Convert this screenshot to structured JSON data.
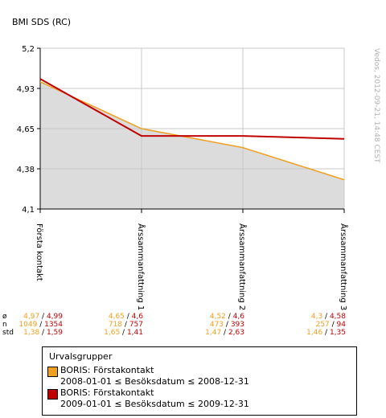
{
  "chart_data": {
    "type": "line",
    "title": "BMI SDS (RC)",
    "categories": [
      "Första kontakt",
      "Årssammanfattning 1",
      "Årssammanfattning 2",
      "Årssammanfattning 3"
    ],
    "y_ticks": [
      "5,2",
      "4,93",
      "4,65",
      "4,38",
      "4,1"
    ],
    "ylim": [
      4.1,
      5.2
    ],
    "grid": true,
    "area_fill": true,
    "series": [
      {
        "name": "BORIS: Förstakontakt 2008-01-01 ≤ Besöksdatum ≤ 2008-12-31",
        "color": "#f0a020",
        "values": [
          4.97,
          4.65,
          4.52,
          4.3
        ]
      },
      {
        "name": "BORIS: Förstakontakt 2009-01-01 ≤ Besöksdatum ≤ 2009-12-31",
        "color": "#c00000",
        "values": [
          4.99,
          4.6,
          4.6,
          4.58
        ]
      }
    ]
  },
  "watermark": "Vedos, 2012-09-21, 14:48 CEST",
  "stats": {
    "labels": [
      "ø",
      "n",
      "std"
    ],
    "columns": [
      {
        "mean": [
          "4,97",
          "4,99"
        ],
        "n": [
          "1049",
          "1354"
        ],
        "std": [
          "1,38",
          "1,59"
        ]
      },
      {
        "mean": [
          "4,65",
          "4,6"
        ],
        "n": [
          "718",
          "757"
        ],
        "std": [
          "1,65",
          "1,41"
        ]
      },
      {
        "mean": [
          "4,52",
          "4,6"
        ],
        "n": [
          "473",
          "393"
        ],
        "std": [
          "1,47",
          "2,63"
        ]
      },
      {
        "mean": [
          "4,3",
          "4,58"
        ],
        "n": [
          "257",
          "94"
        ],
        "std": [
          "1,46",
          "1,35"
        ]
      }
    ]
  },
  "legend": {
    "title": "Urvalsgrupper",
    "entries": [
      {
        "line1": "BORIS: Förstakontakt",
        "line2": "2008-01-01 ≤ Besöksdatum ≤ 2008-12-31",
        "color": "#f0a020"
      },
      {
        "line1": "BORIS: Förstakontakt",
        "line2": "2009-01-01 ≤ Besöksdatum ≤ 2009-12-31",
        "color": "#c00000"
      }
    ]
  }
}
